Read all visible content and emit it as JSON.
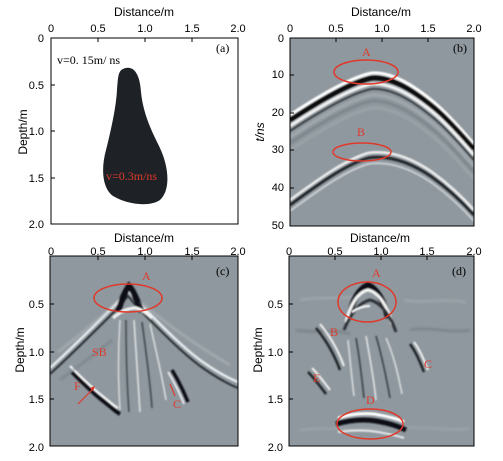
{
  "figure": {
    "panels": {
      "a": {
        "label": "(a)",
        "xaxis_title": "Distance/m",
        "yaxis_title": "Depth/m",
        "xticks": [
          "0",
          "0.5",
          "1.0",
          "1.5",
          "2.0"
        ],
        "yticks": [
          "0",
          "0.5",
          "1.0",
          "1.5",
          "2.0"
        ],
        "velocity_background": "v=0. 15m/ ns",
        "velocity_object": "v=0.3m/ns"
      },
      "b": {
        "label": "(b)",
        "xaxis_title": "Distance/m",
        "yaxis_title": "t/ns",
        "xticks": [
          "0",
          "0.5",
          "1.0",
          "1.5",
          "2.0"
        ],
        "yticks": [
          "0",
          "10",
          "20",
          "30",
          "40",
          "50"
        ],
        "annotations": [
          "A",
          "B"
        ]
      },
      "c": {
        "label": "(c)",
        "xaxis_title": "Distance/m",
        "yaxis_title": "Depth/m",
        "xticks": [
          "0",
          "0.5",
          "1.0",
          "1.5",
          "2.0"
        ],
        "yticks": [
          "0.5",
          "1.0",
          "1.5",
          "2.0"
        ],
        "annotations": [
          "A",
          "SB",
          "F",
          "C"
        ]
      },
      "d": {
        "label": "(d)",
        "xaxis_title": "Distance/m",
        "yaxis_title": "Depth/m",
        "xticks": [
          "0",
          "0.5",
          "1.0",
          "1.5",
          "2.0"
        ],
        "yticks": [
          "0.5",
          "1.0",
          "1.5",
          "2.0"
        ],
        "annotations": [
          "A",
          "B",
          "E",
          "C",
          "D"
        ]
      }
    },
    "colors": {
      "annotation": "#e0392b",
      "object_fill": "#1e2226",
      "seismic_background": "#8f989e"
    }
  }
}
